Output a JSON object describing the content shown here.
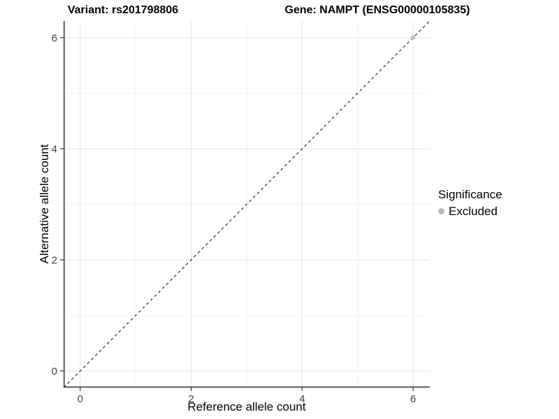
{
  "chart_data": {
    "type": "scatter",
    "title_left": "Variant: rs201798806",
    "title_right": "Gene: NAMPT (ENSG00000105835)",
    "xlabel": "Reference allele count",
    "ylabel": "Alternative allele count",
    "xlim": [
      -0.3,
      6.3
    ],
    "ylim": [
      -0.3,
      6.3
    ],
    "xticks": [
      0,
      2,
      4,
      6
    ],
    "yticks": [
      0,
      2,
      4,
      6
    ],
    "grid": "major gridlines at even ticks, minor at odd, light gray on white panel",
    "points": [
      {
        "x": 6,
        "y": 6,
        "significance": "Excluded"
      }
    ],
    "identity_line": {
      "from": [
        -0.3,
        -0.3
      ],
      "to": [
        6.3,
        6.3
      ],
      "style": "dashed",
      "equation": "y = x"
    },
    "legend": {
      "position": "right",
      "title": "Significance",
      "entries": [
        {
          "label": "Excluded",
          "color": "#b9b9b9"
        }
      ]
    },
    "colors": {
      "point": "#bebebe",
      "grid_major": "#e6e6e6",
      "grid_minor": "#f2f2f2",
      "axis": "#333333",
      "tick": "#333333",
      "tick_label": "#404040",
      "identity_line": "#000000",
      "background": "#ffffff"
    }
  }
}
